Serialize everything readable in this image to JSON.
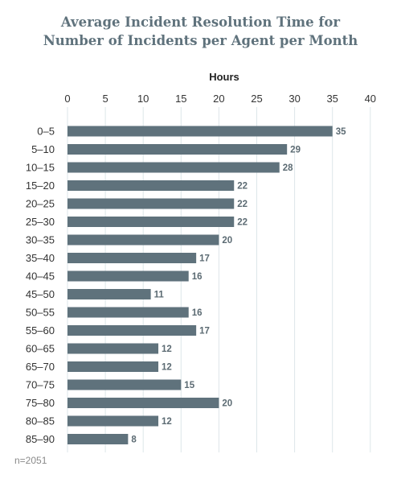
{
  "chart_data": {
    "type": "bar",
    "orientation": "horizontal",
    "title_lines": [
      "Average Incident Resolution Time for",
      "Number of Incidents per Agent per Month"
    ],
    "xlabel": "Hours",
    "xlabel_position": "top",
    "xlim": [
      0,
      40
    ],
    "xticks": [
      0,
      5,
      10,
      15,
      20,
      25,
      30,
      35,
      40
    ],
    "categories": [
      "0–5",
      "5–10",
      "10–15",
      "15–20",
      "20–25",
      "25–30",
      "30–35",
      "35–40",
      "40–45",
      "45–50",
      "50–55",
      "55–60",
      "60–65",
      "65–70",
      "70–75",
      "75–80",
      "80–85",
      "85–90"
    ],
    "values": [
      35,
      29,
      28,
      22,
      22,
      22,
      20,
      17,
      16,
      11,
      16,
      17,
      12,
      12,
      15,
      20,
      12,
      8
    ],
    "grid": true,
    "data_labels": true,
    "note": "n=2051",
    "colors": {
      "bar": "#5f727c",
      "title": "#5f727c",
      "grid": "#dde6e9",
      "data_label": "#5c6b73",
      "note": "#8a8a8a"
    }
  }
}
